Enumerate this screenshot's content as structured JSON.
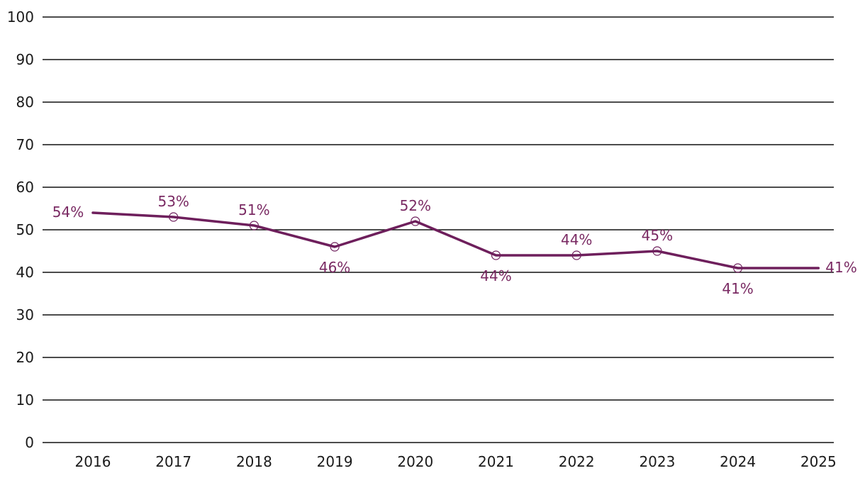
{
  "chart_data": {
    "type": "line",
    "title": "",
    "xlabel": "",
    "ylabel": "",
    "categories": [
      "2016",
      "2017",
      "2018",
      "2019",
      "2020",
      "2021",
      "2022",
      "2023",
      "2024",
      "2025"
    ],
    "series": [
      {
        "values": [
          54,
          53,
          51,
          46,
          52,
          44,
          44,
          45,
          41,
          41
        ],
        "labels": [
          "54%",
          "53%",
          "51%",
          "46%",
          "52%",
          "44%",
          "44%",
          "45%",
          "41%",
          "41%"
        ]
      }
    ],
    "ylim": [
      0,
      100
    ],
    "yticks": [
      "0",
      "10",
      "20",
      "30",
      "40",
      "50",
      "60",
      "70",
      "80",
      "90",
      "100"
    ],
    "grid": true,
    "legend": "none",
    "colors": {
      "series": "#6e1f5c",
      "label": "#7a2a63",
      "grid": "#111111",
      "text": "#1a1a1a"
    }
  }
}
